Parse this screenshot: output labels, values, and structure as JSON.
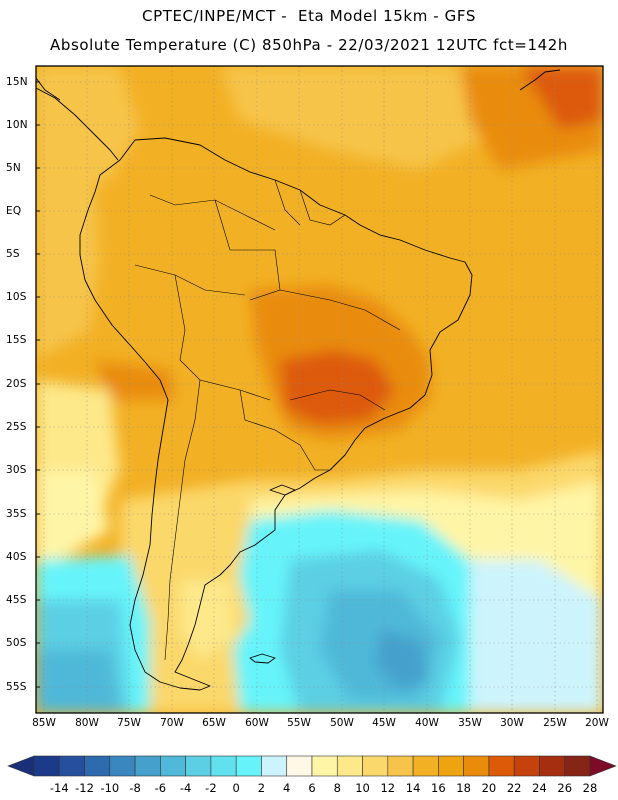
{
  "header": {
    "title": "CPTEC/INPE/MCT -  Eta Model 15km - GFS",
    "subtitle": "Absolute Temperature (C) 850hPa - 22/03/2021 12UTC fct=142h"
  },
  "map": {
    "lat_labels": [
      "15N",
      "10N",
      "5N",
      "EQ",
      "5S",
      "10S",
      "15S",
      "20S",
      "25S",
      "30S",
      "35S",
      "40S",
      "45S",
      "50S",
      "55S"
    ],
    "lon_labels": [
      "85W",
      "80W",
      "75W",
      "70W",
      "65W",
      "60W",
      "55W",
      "50W",
      "45W",
      "40W",
      "35W",
      "30W",
      "25W",
      "20W"
    ],
    "grid": "dotted",
    "border_color": "#000000"
  },
  "colorbar": {
    "tick_labels": [
      "-14",
      "-12",
      "-10",
      "-8",
      "-6",
      "-4",
      "-2",
      "0",
      "2",
      "4",
      "6",
      "8",
      "10",
      "12",
      "14",
      "16",
      "18",
      "20",
      "22",
      "24",
      "26",
      "28"
    ],
    "colors": [
      "#1b3a8a",
      "#26509e",
      "#2e6aae",
      "#3a86bf",
      "#45a0cc",
      "#50b8d8",
      "#5ccfe4",
      "#62e0ee",
      "#66f4fa",
      "#cdf4fd",
      "#fff8e6",
      "#fff5a6",
      "#fde88a",
      "#fbd86b",
      "#f6c44a",
      "#f2b025",
      "#eda410",
      "#e98c0c",
      "#dd5a08",
      "#c6420c",
      "#a52e10",
      "#862416"
    ],
    "end_colors": {
      "low": "#1a2f7a",
      "high": "#7e0a2a"
    }
  }
}
